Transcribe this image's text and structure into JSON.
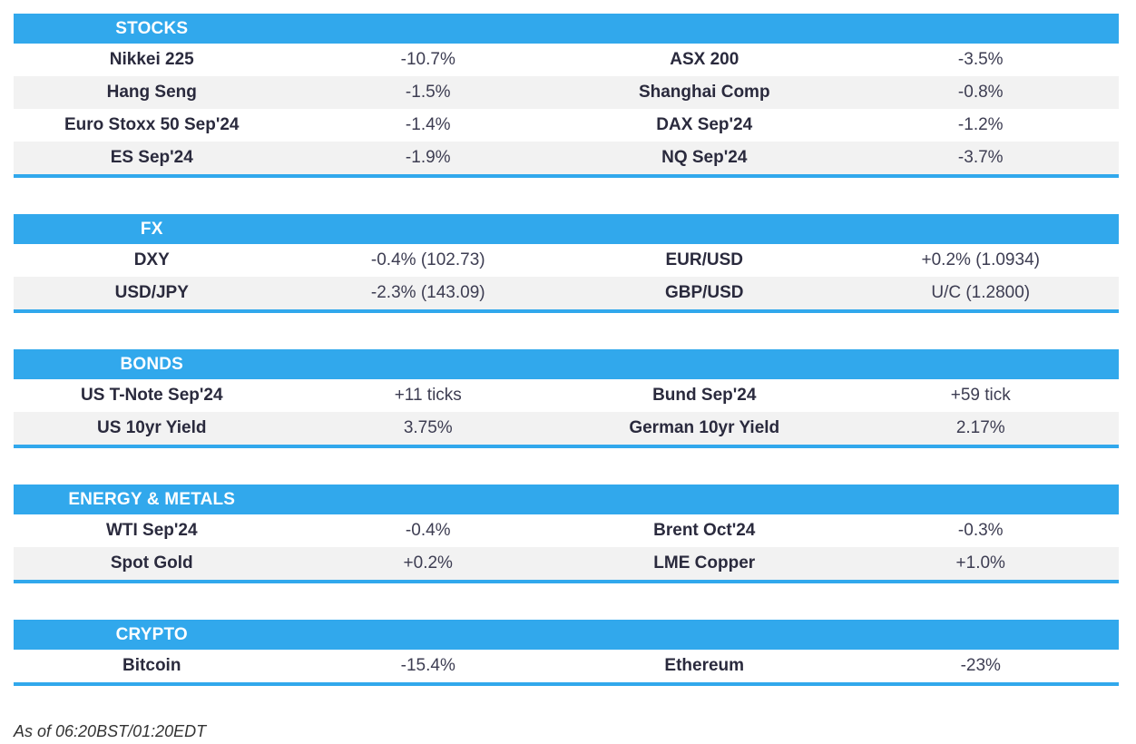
{
  "colors": {
    "header_blue": "#31a8ec",
    "row_alt_gray": "#f2f2f2",
    "name_text": "#2a2a3d",
    "value_text": "#3d3d52"
  },
  "sections": [
    {
      "title": "STOCKS",
      "rows": [
        [
          "Nikkei 225",
          "-10.7%",
          "ASX 200",
          "-3.5%"
        ],
        [
          "Hang Seng",
          "-1.5%",
          "Shanghai Comp",
          "-0.8%"
        ],
        [
          "Euro Stoxx 50 Sep'24",
          "-1.4%",
          "DAX Sep'24",
          "-1.2%"
        ],
        [
          "ES Sep'24",
          "-1.9%",
          "NQ Sep'24",
          "-3.7%"
        ]
      ]
    },
    {
      "title": "FX",
      "rows": [
        [
          "DXY",
          "-0.4% (102.73)",
          "EUR/USD",
          "+0.2% (1.0934)"
        ],
        [
          "USD/JPY",
          "-2.3% (143.09)",
          "GBP/USD",
          "U/C (1.2800)"
        ]
      ]
    },
    {
      "title": "BONDS",
      "rows": [
        [
          "US T-Note Sep'24",
          "+11 ticks",
          "Bund Sep'24",
          "+59 tick"
        ],
        [
          "US 10yr Yield",
          "3.75%",
          "German 10yr Yield",
          "2.17%"
        ]
      ]
    },
    {
      "title": "ENERGY & METALS",
      "rows": [
        [
          "WTI Sep'24",
          "-0.4%",
          "Brent Oct'24",
          "-0.3%"
        ],
        [
          "Spot Gold",
          "+0.2%",
          "LME Copper",
          "+1.0%"
        ]
      ]
    },
    {
      "title": "CRYPTO",
      "rows": [
        [
          "Bitcoin",
          "-15.4%",
          "Ethereum",
          "-23%"
        ]
      ]
    }
  ],
  "footer": {
    "as_of": "As of 06:20BST/01:20EDT"
  }
}
